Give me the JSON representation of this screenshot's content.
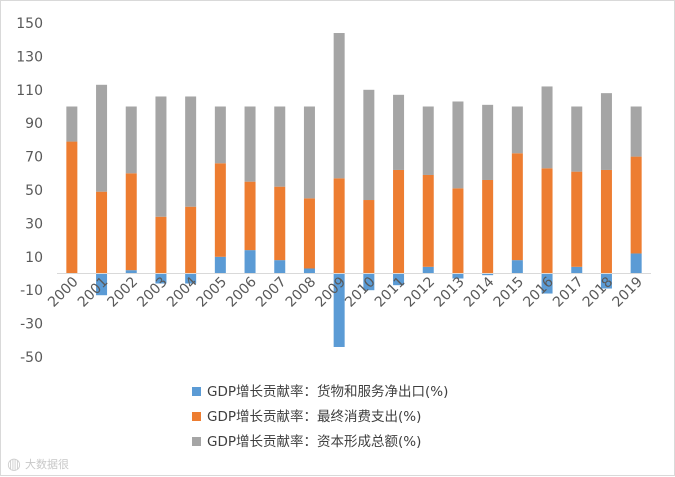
{
  "chart_data": {
    "type": "bar",
    "stacked": true,
    "categories": [
      "2000",
      "2001",
      "2002",
      "2003",
      "2004",
      "2005",
      "2006",
      "2007",
      "2008",
      "2009",
      "2010",
      "2011",
      "2012",
      "2013",
      "2014",
      "2015",
      "2016",
      "2017",
      "2018",
      "2019"
    ],
    "series": [
      {
        "name": "GDP增长贡献率：货物和服务净出口(%)",
        "color": "#5b9bd5",
        "values": [
          0,
          -13,
          2,
          -6,
          -6,
          10,
          14,
          8,
          3,
          -44,
          -10,
          -7,
          4,
          -3,
          -1,
          8,
          -12,
          4,
          -9,
          12
        ]
      },
      {
        "name": "GDP增长贡献率：最终消费支出(%)",
        "color": "#ed7d31",
        "values": [
          79,
          49,
          58,
          34,
          40,
          56,
          41,
          44,
          42,
          57,
          44,
          62,
          55,
          51,
          56,
          64,
          63,
          57,
          62,
          58
        ]
      },
      {
        "name": "GDP增长贡献率：资本形成总额(%)",
        "color": "#a5a5a5",
        "values": [
          21,
          64,
          40,
          72,
          66,
          34,
          45,
          48,
          55,
          87,
          66,
          45,
          41,
          52,
          45,
          28,
          49,
          39,
          46,
          30
        ]
      }
    ],
    "ylim": [
      -50,
      150
    ],
    "yticks": [
      150,
      130,
      110,
      90,
      70,
      50,
      30,
      10,
      -10,
      -30,
      -50
    ],
    "grid": false,
    "legend_position": "bottom"
  },
  "watermark": "大数据很"
}
